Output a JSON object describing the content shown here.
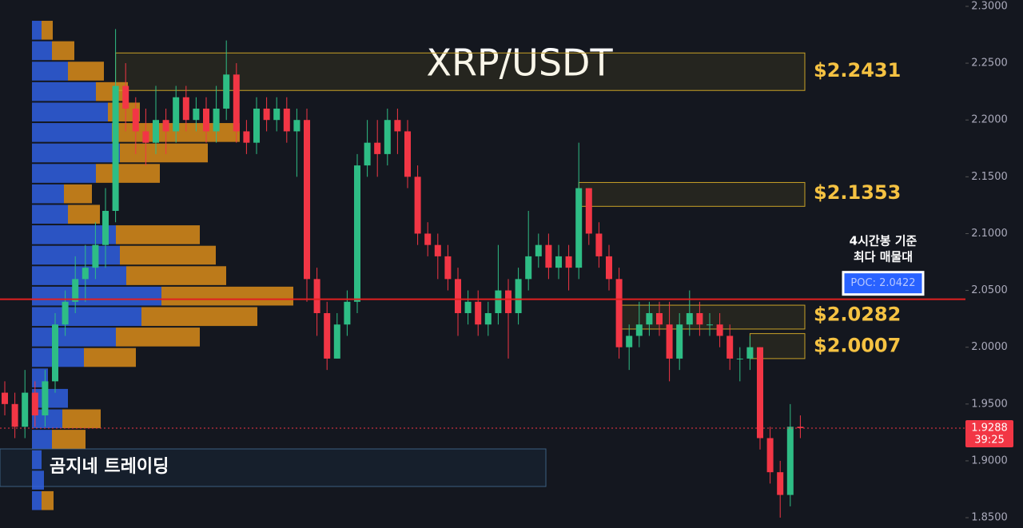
{
  "chart_data": {
    "type": "candlestick",
    "title": "XRP/USDT",
    "ylim": [
      1.8409,
      2.3056
    ],
    "yticks": [
      {
        "value": 2.3,
        "label": "2.3000"
      },
      {
        "value": 2.25,
        "label": "2.2500"
      },
      {
        "value": 2.2,
        "label": "2.2000"
      },
      {
        "value": 2.15,
        "label": "2.1500"
      },
      {
        "value": 2.1,
        "label": "2.1000"
      },
      {
        "value": 2.05,
        "label": "2.0500"
      },
      {
        "value": 2.0,
        "label": "2.0000"
      },
      {
        "value": 1.95,
        "label": "1.9500"
      },
      {
        "value": 1.9,
        "label": "1.9000"
      },
      {
        "value": 1.85,
        "label": "1.8500"
      }
    ],
    "up_color": "#2ebd85",
    "down_color": "#f23645",
    "open": [
      1.96,
      1.95,
      1.93,
      1.96,
      1.94,
      1.97,
      2.02,
      2.04,
      2.06,
      2.07,
      2.09,
      2.12,
      2.23,
      2.21,
      2.19,
      2.18,
      2.2,
      2.19,
      2.22,
      2.2,
      2.21,
      2.19,
      2.21,
      2.24,
      2.19,
      2.18,
      2.21,
      2.2,
      2.21,
      2.19,
      2.2,
      2.06,
      2.03,
      1.99,
      2.02,
      2.04,
      2.16,
      2.18,
      2.17,
      2.2,
      2.19,
      2.15,
      2.1,
      2.09,
      2.08,
      2.06,
      2.03,
      2.04,
      2.02,
      2.03,
      2.05,
      2.03,
      2.06,
      2.08,
      2.09,
      2.07,
      2.08,
      2.07,
      2.14,
      2.1,
      2.08,
      2.06,
      2.0,
      2.01,
      2.02,
      2.03,
      2.02,
      1.99,
      2.02,
      2.03,
      2.02,
      2.02,
      2.01,
      1.99,
      1.99,
      2.0,
      1.92,
      1.89,
      1.87,
      1.93
    ],
    "high": [
      1.97,
      1.96,
      1.98,
      1.97,
      1.98,
      2.03,
      2.05,
      2.08,
      2.09,
      2.11,
      2.14,
      2.28,
      2.25,
      2.22,
      2.21,
      2.23,
      2.21,
      2.23,
      2.23,
      2.22,
      2.22,
      2.23,
      2.27,
      2.25,
      2.2,
      2.22,
      2.22,
      2.22,
      2.22,
      2.21,
      2.21,
      2.07,
      2.04,
      2.03,
      2.05,
      2.17,
      2.2,
      2.2,
      2.21,
      2.21,
      2.2,
      2.16,
      2.11,
      2.1,
      2.09,
      2.07,
      2.05,
      2.05,
      2.04,
      2.09,
      2.06,
      2.07,
      2.12,
      2.1,
      2.1,
      2.09,
      2.09,
      2.18,
      2.14,
      2.11,
      2.09,
      2.07,
      2.02,
      2.04,
      2.04,
      2.04,
      2.04,
      2.03,
      2.05,
      2.04,
      2.03,
      2.03,
      2.02,
      2.0,
      2.01,
      2.0,
      1.93,
      1.9,
      1.95,
      1.94
    ],
    "low": [
      1.94,
      1.92,
      1.92,
      1.93,
      1.93,
      1.96,
      2.01,
      2.03,
      2.04,
      2.06,
      2.07,
      2.11,
      2.19,
      2.17,
      2.16,
      2.17,
      2.17,
      2.18,
      2.19,
      2.19,
      2.18,
      2.18,
      2.2,
      2.18,
      2.17,
      2.17,
      2.19,
      2.19,
      2.18,
      2.15,
      2.04,
      2.01,
      1.98,
      1.99,
      2.01,
      2.03,
      2.15,
      2.15,
      2.16,
      2.17,
      2.14,
      2.09,
      2.08,
      2.06,
      2.05,
      2.01,
      2.02,
      2.01,
      2.01,
      2.02,
      1.99,
      2.02,
      2.05,
      2.07,
      2.06,
      2.06,
      2.05,
      2.06,
      2.09,
      2.07,
      2.05,
      1.99,
      1.98,
      2.0,
      2.01,
      2.01,
      1.97,
      1.98,
      2.01,
      2.01,
      2.01,
      2.0,
      1.98,
      1.97,
      1.98,
      1.91,
      1.88,
      1.85,
      1.86,
      1.92
    ],
    "close": [
      1.95,
      1.93,
      1.96,
      1.94,
      1.97,
      2.02,
      2.04,
      2.06,
      2.07,
      2.09,
      2.12,
      2.23,
      2.21,
      2.19,
      2.18,
      2.2,
      2.19,
      2.22,
      2.2,
      2.21,
      2.19,
      2.21,
      2.24,
      2.19,
      2.18,
      2.21,
      2.2,
      2.21,
      2.19,
      2.2,
      2.06,
      2.03,
      1.99,
      2.02,
      2.04,
      2.16,
      2.18,
      2.17,
      2.2,
      2.19,
      2.15,
      2.1,
      2.09,
      2.08,
      2.06,
      2.03,
      2.04,
      2.02,
      2.03,
      2.05,
      2.03,
      2.06,
      2.08,
      2.09,
      2.07,
      2.08,
      2.07,
      2.14,
      2.1,
      2.08,
      2.06,
      2.0,
      2.01,
      2.02,
      2.03,
      2.02,
      1.99,
      2.02,
      2.03,
      2.02,
      2.02,
      2.01,
      1.99,
      1.99,
      2.0,
      1.92,
      1.89,
      1.87,
      1.93,
      1.9288
    ],
    "profile": {
      "bins": [
        2.288,
        2.27,
        2.252,
        2.234,
        2.216,
        2.198,
        2.18,
        2.162,
        2.144,
        2.126,
        2.108,
        2.09,
        2.072,
        2.054,
        2.036,
        2.018,
        2.0,
        1.982,
        1.964,
        1.946,
        1.928,
        1.91,
        1.892,
        1.874,
        1.856
      ],
      "buy": [
        12,
        25,
        45,
        80,
        95,
        100,
        110,
        80,
        40,
        45,
        105,
        110,
        118,
        162,
        137,
        105,
        65,
        20,
        45,
        38,
        25,
        12,
        15,
        12
      ],
      "sell": [
        14,
        28,
        45,
        40,
        40,
        160,
        110,
        80,
        35,
        40,
        105,
        120,
        125,
        165,
        145,
        105,
        65,
        0,
        0,
        48,
        42,
        0,
        0,
        15
      ],
      "buy_color": "#2f5fe0",
      "sell_color": "#d98c1a"
    },
    "zones": [
      {
        "top": 2.259,
        "bottom": 2.226,
        "start": 11,
        "value": 2.2431,
        "label": "$2.2431"
      },
      {
        "top": 2.145,
        "bottom": 2.124,
        "start": 57,
        "value": 2.1353,
        "label": "$2.1353"
      },
      {
        "top": 2.037,
        "bottom": 2.016,
        "start": 61,
        "value": 2.0282,
        "label": "$2.0282"
      },
      {
        "top": 2.012,
        "bottom": 1.99,
        "start": 74,
        "value": 2.0007,
        "label": "$2.0007"
      }
    ],
    "zone_color": "#c9a227",
    "poc": {
      "value": 2.0422,
      "label": "POC: 2.0422"
    },
    "annotation": [
      "4시간봉 기준",
      "최다 매물대"
    ],
    "watermark": "곰지네 트레이딩",
    "current_price": {
      "value": 1.9288,
      "timer": "39:25"
    }
  }
}
